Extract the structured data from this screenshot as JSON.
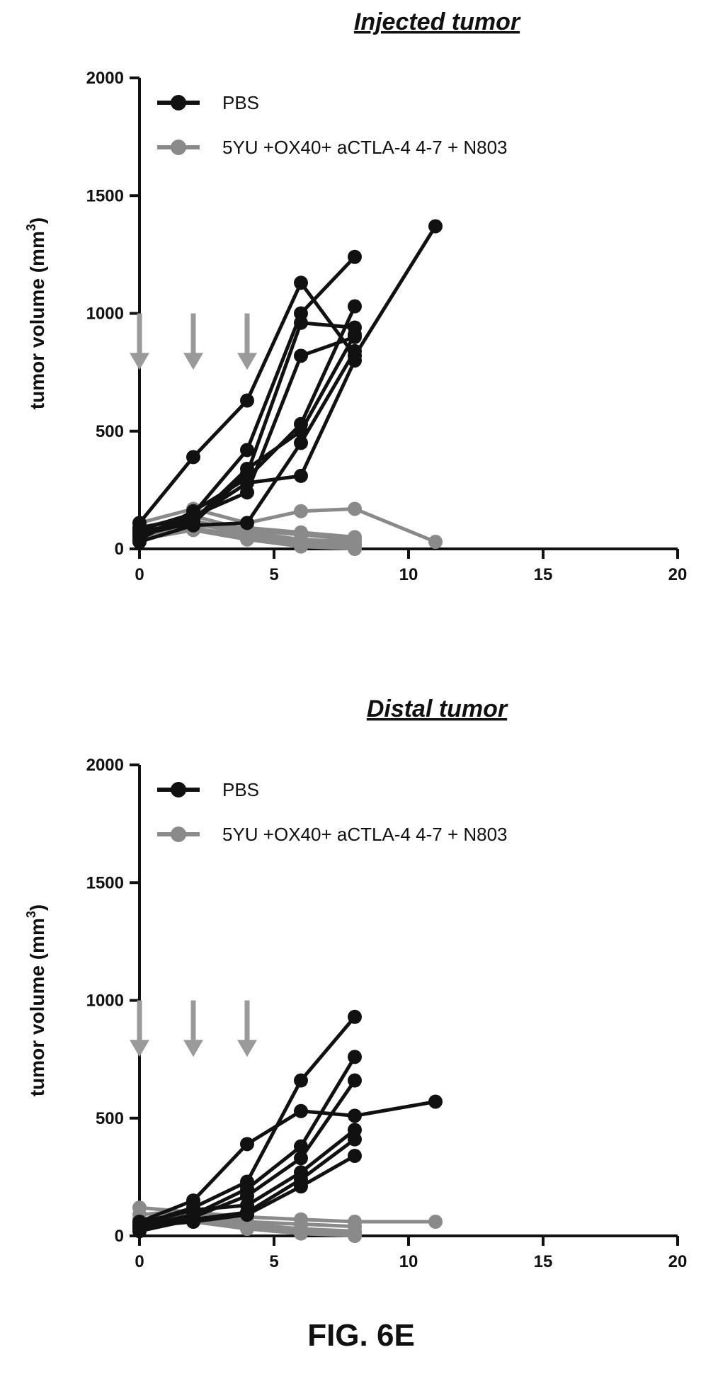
{
  "figure_label": "FIG. 6E",
  "colors": {
    "pbs": "#111111",
    "treated": "#8a8a8a",
    "arrow": "#9a9a9a",
    "axis": "#111111"
  },
  "chart_data": [
    {
      "type": "line",
      "title": "Injected tumor",
      "ylabel": "tumor volume (mm",
      "ylabel_sup": "3",
      "ylabel_close": ")",
      "xlabel": "",
      "xlim": [
        0,
        20
      ],
      "ylim": [
        0,
        2000
      ],
      "xticks": [
        "0",
        "5",
        "10",
        "15",
        "20"
      ],
      "yticks": [
        "0",
        "500",
        "1000",
        "1500",
        "2000"
      ],
      "legend": [
        "PBS",
        "5YU +OX40+ aCTLA-4 4-7 + N803"
      ],
      "legend_position": "top-left",
      "treatment_arrows_x": [
        0,
        2,
        4
      ],
      "series": [
        {
          "group": "PBS",
          "x": [
            0,
            2,
            4,
            6,
            8,
            11
          ],
          "y": [
            110,
            390,
            630,
            1130,
            820,
            1370
          ]
        },
        {
          "group": "PBS",
          "x": [
            0,
            2,
            4,
            6,
            8
          ],
          "y": [
            80,
            150,
            420,
            1000,
            1240
          ]
        },
        {
          "group": "PBS",
          "x": [
            0,
            2,
            4,
            6,
            8
          ],
          "y": [
            60,
            110,
            320,
            960,
            940
          ]
        },
        {
          "group": "PBS",
          "x": [
            0,
            2,
            4,
            6,
            8
          ],
          "y": [
            50,
            140,
            240,
            820,
            900
          ]
        },
        {
          "group": "PBS",
          "x": [
            0,
            2,
            4,
            6,
            8
          ],
          "y": [
            40,
            160,
            300,
            530,
            1030
          ]
        },
        {
          "group": "PBS",
          "x": [
            0,
            2,
            4,
            6,
            8
          ],
          "y": [
            70,
            120,
            340,
            500,
            910
          ]
        },
        {
          "group": "PBS",
          "x": [
            0,
            2,
            4,
            6,
            8
          ],
          "y": [
            30,
            100,
            110,
            450,
            840
          ]
        },
        {
          "group": "PBS",
          "x": [
            0,
            2,
            4,
            6,
            8
          ],
          "y": [
            90,
            130,
            280,
            310,
            800
          ]
        },
        {
          "group": "5YU +OX40+ aCTLA-4 4-7 + N803",
          "x": [
            0,
            2,
            4,
            6,
            8,
            11
          ],
          "y": [
            110,
            170,
            110,
            160,
            170,
            30
          ]
        },
        {
          "group": "5YU +OX40+ aCTLA-4 4-7 + N803",
          "x": [
            0,
            2,
            4,
            6,
            8
          ],
          "y": [
            90,
            140,
            80,
            60,
            40
          ]
        },
        {
          "group": "5YU +OX40+ aCTLA-4 4-7 + N803",
          "x": [
            0,
            2,
            4,
            6,
            8
          ],
          "y": [
            70,
            110,
            60,
            30,
            20
          ]
        },
        {
          "group": "5YU +OX40+ aCTLA-4 4-7 + N803",
          "x": [
            0,
            2,
            4,
            6,
            8
          ],
          "y": [
            50,
            90,
            50,
            20,
            10
          ]
        },
        {
          "group": "5YU +OX40+ aCTLA-4 4-7 + N803",
          "x": [
            0,
            2,
            4,
            6,
            8
          ],
          "y": [
            60,
            120,
            70,
            40,
            30
          ]
        },
        {
          "group": "5YU +OX40+ aCTLA-4 4-7 + N803",
          "x": [
            0,
            2,
            4,
            6,
            8
          ],
          "y": [
            40,
            80,
            40,
            10,
            0
          ]
        },
        {
          "group": "5YU +OX40+ aCTLA-4 4-7 + N803",
          "x": [
            0,
            2,
            4,
            6,
            8
          ],
          "y": [
            80,
            100,
            90,
            70,
            50
          ]
        }
      ]
    },
    {
      "type": "line",
      "title": "Distal tumor",
      "ylabel": "tumor volume (mm",
      "ylabel_sup": "3",
      "ylabel_close": ")",
      "xlabel": "",
      "xlim": [
        0,
        20
      ],
      "ylim": [
        0,
        2000
      ],
      "xticks": [
        "0",
        "5",
        "10",
        "15",
        "20"
      ],
      "yticks": [
        "0",
        "500",
        "1000",
        "1500",
        "2000"
      ],
      "legend": [
        "PBS",
        "5YU +OX40+ aCTLA-4 4-7 + N803"
      ],
      "legend_position": "top-left",
      "treatment_arrows_x": [
        0,
        2,
        4
      ],
      "series": [
        {
          "group": "PBS",
          "x": [
            0,
            2,
            4,
            6,
            8,
            11
          ],
          "y": [
            60,
            150,
            390,
            530,
            510,
            570
          ]
        },
        {
          "group": "PBS",
          "x": [
            0,
            2,
            4,
            6,
            8
          ],
          "y": [
            50,
            120,
            230,
            660,
            930
          ]
        },
        {
          "group": "PBS",
          "x": [
            0,
            2,
            4,
            6,
            8
          ],
          "y": [
            40,
            90,
            200,
            380,
            760
          ]
        },
        {
          "group": "PBS",
          "x": [
            0,
            2,
            4,
            6,
            8
          ],
          "y": [
            30,
            80,
            170,
            330,
            660
          ]
        },
        {
          "group": "PBS",
          "x": [
            0,
            2,
            4,
            6,
            8
          ],
          "y": [
            50,
            110,
            130,
            270,
            450
          ]
        },
        {
          "group": "PBS",
          "x": [
            0,
            2,
            4,
            6,
            8
          ],
          "y": [
            20,
            70,
            100,
            240,
            410
          ]
        },
        {
          "group": "PBS",
          "x": [
            0,
            2,
            4,
            6,
            8
          ],
          "y": [
            40,
            60,
            90,
            210,
            340
          ]
        },
        {
          "group": "5YU +OX40+ aCTLA-4 4-7 + N803",
          "x": [
            0,
            2,
            4,
            6,
            8,
            11
          ],
          "y": [
            120,
            100,
            80,
            70,
            60,
            60
          ]
        },
        {
          "group": "5YU +OX40+ aCTLA-4 4-7 + N803",
          "x": [
            0,
            2,
            4,
            6,
            8
          ],
          "y": [
            90,
            110,
            60,
            50,
            40
          ]
        },
        {
          "group": "5YU +OX40+ aCTLA-4 4-7 + N803",
          "x": [
            0,
            2,
            4,
            6,
            8
          ],
          "y": [
            70,
            90,
            50,
            30,
            20
          ]
        },
        {
          "group": "5YU +OX40+ aCTLA-4 4-7 + N803",
          "x": [
            0,
            2,
            4,
            6,
            8
          ],
          "y": [
            50,
            70,
            40,
            20,
            10
          ]
        },
        {
          "group": "5YU +OX40+ aCTLA-4 4-7 + N803",
          "x": [
            0,
            2,
            4,
            6,
            8
          ],
          "y": [
            60,
            80,
            30,
            10,
            0
          ]
        },
        {
          "group": "5YU +OX40+ aCTLA-4 4-7 + N803",
          "x": [
            0,
            2,
            4,
            6,
            8
          ],
          "y": [
            40,
            60,
            30,
            20,
            10
          ]
        }
      ]
    }
  ]
}
